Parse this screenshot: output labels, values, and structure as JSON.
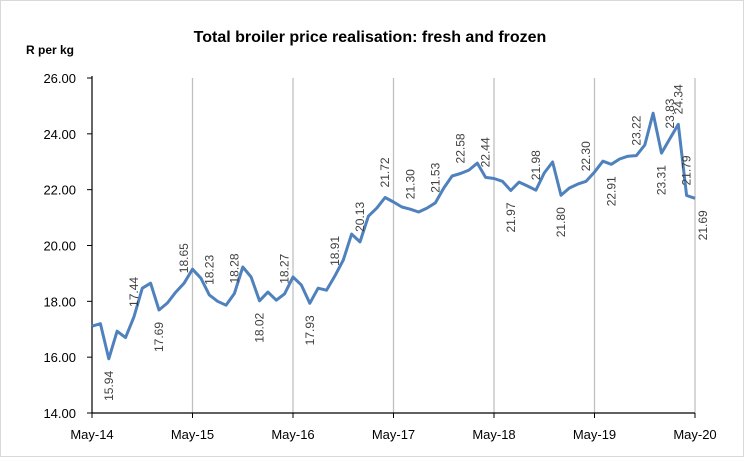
{
  "chart_data": {
    "type": "line",
    "title": "Total broiler price realisation: fresh and frozen",
    "ylabel": "R per kg",
    "xlabel": "",
    "ylim": [
      14,
      26
    ],
    "yticks": [
      "14.00",
      "16.00",
      "18.00",
      "20.00",
      "22.00",
      "24.00",
      "26.00"
    ],
    "xticks": [
      "May-14",
      "May-15",
      "May-16",
      "May-17",
      "May-18",
      "May-19",
      "May-20"
    ],
    "x_start": "May-14",
    "x_end": "May-20",
    "frequency": "monthly",
    "grid": "vertical lines at each May",
    "line_color": "#4F81BD",
    "values": [
      17.11,
      17.2,
      15.94,
      16.93,
      16.7,
      17.44,
      18.47,
      18.65,
      17.69,
      17.94,
      18.33,
      18.65,
      19.15,
      18.83,
      18.23,
      18.0,
      17.86,
      18.28,
      19.23,
      18.87,
      18.02,
      18.33,
      18.04,
      18.27,
      18.87,
      18.58,
      17.93,
      18.47,
      18.4,
      18.91,
      19.48,
      20.41,
      20.13,
      21.05,
      21.34,
      21.72,
      21.56,
      21.38,
      21.3,
      21.2,
      21.34,
      21.53,
      22.06,
      22.49,
      22.58,
      22.7,
      22.95,
      22.44,
      22.4,
      22.3,
      21.97,
      22.27,
      22.13,
      21.98,
      22.6,
      22.99,
      21.8,
      22.06,
      22.2,
      22.3,
      22.63,
      23.02,
      22.91,
      23.1,
      23.2,
      23.22,
      23.6,
      24.74,
      23.31,
      23.83,
      24.34,
      21.79,
      21.69
    ],
    "data_labels": [
      {
        "text": "15.94",
        "index": 2,
        "side": "below"
      },
      {
        "text": "17.44",
        "index": 5,
        "side": "above"
      },
      {
        "text": "17.69",
        "index": 8,
        "side": "below"
      },
      {
        "text": "18.65",
        "index": 11,
        "side": "above"
      },
      {
        "text": "18.23",
        "index": 14,
        "side": "above"
      },
      {
        "text": "18.28",
        "index": 17,
        "side": "above"
      },
      {
        "text": "18.02",
        "index": 20,
        "side": "below"
      },
      {
        "text": "18.27",
        "index": 23,
        "side": "above"
      },
      {
        "text": "17.93",
        "index": 26,
        "side": "below"
      },
      {
        "text": "18.91",
        "index": 29,
        "side": "above"
      },
      {
        "text": "20.13",
        "index": 32,
        "side": "above"
      },
      {
        "text": "21.72",
        "index": 35,
        "side": "above"
      },
      {
        "text": "21.30",
        "index": 38,
        "side": "above"
      },
      {
        "text": "21.53",
        "index": 41,
        "side": "above"
      },
      {
        "text": "22.58",
        "index": 44,
        "side": "above"
      },
      {
        "text": "22.44",
        "index": 47,
        "side": "above"
      },
      {
        "text": "21.97",
        "index": 50,
        "side": "below"
      },
      {
        "text": "21.98",
        "index": 53,
        "side": "above"
      },
      {
        "text": "21.80",
        "index": 56,
        "side": "below"
      },
      {
        "text": "22.30",
        "index": 59,
        "side": "above"
      },
      {
        "text": "22.91",
        "index": 62,
        "side": "below"
      },
      {
        "text": "23.22",
        "index": 65,
        "side": "above"
      },
      {
        "text": "23.31",
        "index": 68,
        "side": "below"
      },
      {
        "text": "23.83",
        "index": 69,
        "side": "above"
      },
      {
        "text": "24.34",
        "index": 70,
        "side": "above"
      },
      {
        "text": "21.79",
        "index": 71,
        "side": "above"
      },
      {
        "text": "21.69",
        "index": 72,
        "side": "below"
      }
    ]
  }
}
